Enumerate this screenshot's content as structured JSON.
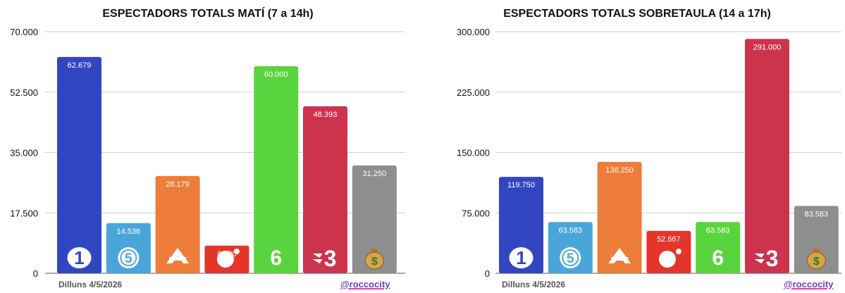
{
  "chart_data": [
    {
      "type": "bar",
      "title": "ESPECTADORS TOTALS MATÍ (7 a 14h)",
      "categories": [
        "1",
        "5",
        "A3",
        "Cuatro",
        "6",
        "3",
        "$"
      ],
      "series": [
        {
          "values": [
            62679,
            14536,
            28179,
            8000,
            60000,
            48393,
            31250
          ]
        }
      ],
      "value_labels": [
        "62.679",
        "14.536",
        "28.179",
        "8.000",
        "60.000",
        "48.393",
        "31.250"
      ],
      "ylim": [
        0,
        70000
      ],
      "yticks": [
        0,
        17500,
        35000,
        52500,
        70000
      ],
      "ytick_labels": [
        "0",
        "17.500",
        "35.000",
        "52.500",
        "70.000"
      ],
      "colors": [
        "#3346c2",
        "#4aa6da",
        "#ee7d3a",
        "#e5352b",
        "#5ad43e",
        "#cc344e",
        "#8e8e8e"
      ],
      "icons": [
        "la1-logo-icon",
        "telecinco-logo-icon",
        "antena3-logo-icon",
        "cuatro-logo-icon",
        "lasexta-logo-icon",
        "tv3-logo-icon",
        "money-bag-icon"
      ],
      "grid": true,
      "footer_date": "Dilluns 4/5/2026",
      "handle": "@roccocity"
    },
    {
      "type": "bar",
      "title": "ESPECTADORS TOTALS SOBRETAULA (14 a 17h)",
      "categories": [
        "1",
        "5",
        "A3",
        "Cuatro",
        "6",
        "3",
        "$"
      ],
      "series": [
        {
          "values": [
            119750,
            63583,
            138250,
            52667,
            63583,
            291000,
            83583
          ]
        }
      ],
      "value_labels": [
        "119.750",
        "63.583",
        "138.250",
        "52.667",
        "63.583",
        "291.000",
        "83.583"
      ],
      "ylim": [
        0,
        300000
      ],
      "yticks": [
        0,
        75000,
        150000,
        225000,
        300000
      ],
      "ytick_labels": [
        "0",
        "75.000",
        "150.000",
        "225.000",
        "300.000"
      ],
      "colors": [
        "#3346c2",
        "#4aa6da",
        "#ee7d3a",
        "#e5352b",
        "#5ad43e",
        "#cc344e",
        "#8e8e8e"
      ],
      "icons": [
        "la1-logo-icon",
        "telecinco-logo-icon",
        "antena3-logo-icon",
        "cuatro-logo-icon",
        "lasexta-logo-icon",
        "tv3-logo-icon",
        "money-bag-icon"
      ],
      "grid": true,
      "footer_date": "Dilluns 4/5/2026",
      "handle": "@roccocity"
    }
  ]
}
